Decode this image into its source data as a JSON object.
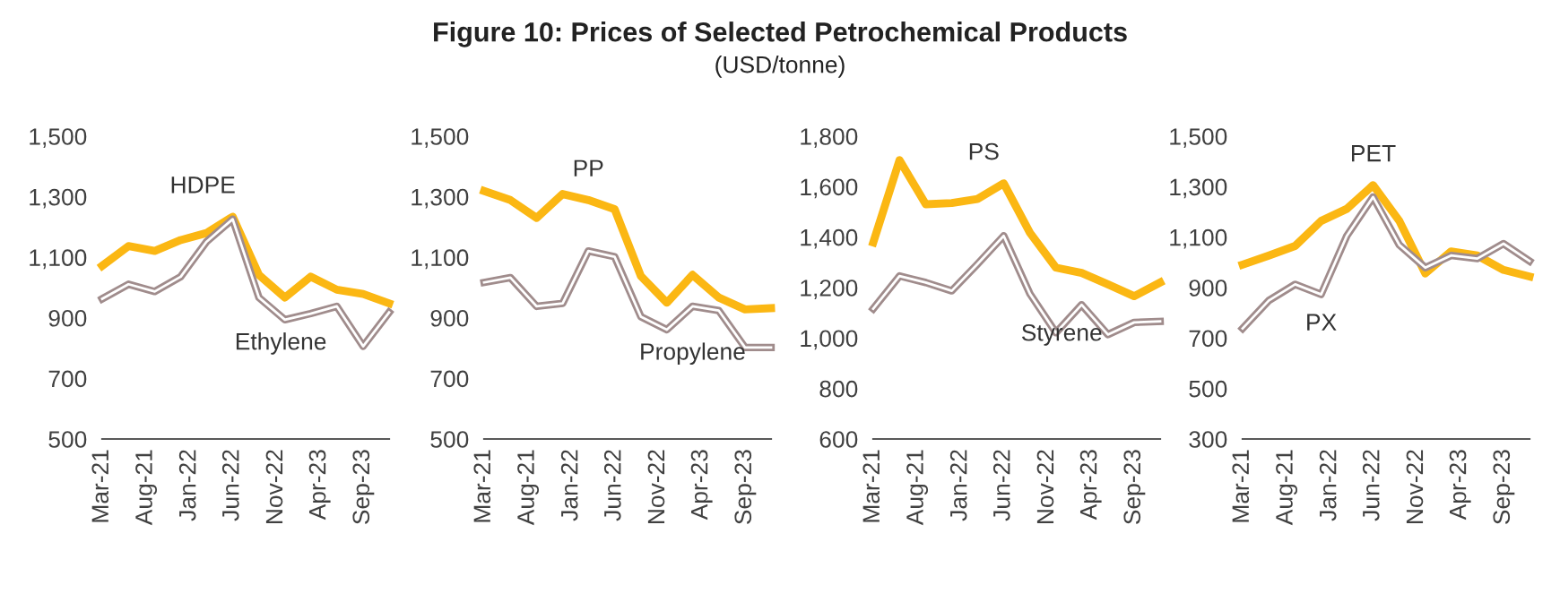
{
  "chart_data": [
    {
      "type": "other",
      "title": "Figure 10: Prices of Selected Petrochemical Products",
      "subtitle": "(USD/tonne)"
    },
    {
      "type": "line",
      "x": [
        "2021-03",
        "2021-06",
        "2021-09",
        "2021-12",
        "2022-03",
        "2022-06",
        "2022-09",
        "2022-12",
        "2023-03",
        "2023-06",
        "2023-09",
        "2023-12"
      ],
      "series": [
        {
          "name": "HDPE",
          "color": "#fbb713",
          "values": [
            1072,
            1137,
            1121,
            1157,
            1180,
            1234,
            1042,
            967,
            1036,
            993,
            979,
            948
          ]
        },
        {
          "name": "Ethylene",
          "color": "#a08c8c",
          "values": [
            963,
            1011,
            987,
            1036,
            1151,
            1226,
            967,
            894,
            914,
            938,
            806,
            918
          ]
        }
      ],
      "xlim": [
        "2021-03",
        "2023-12"
      ],
      "ylim": [
        500,
        1500
      ],
      "yticks": [
        {
          "value": 500,
          "label": "500"
        },
        {
          "value": 700,
          "label": "700"
        },
        {
          "value": 900,
          "label": "900"
        },
        {
          "value": 1100,
          "label": "1,100"
        },
        {
          "value": 1300,
          "label": "1,300"
        },
        {
          "value": 1500,
          "label": "1,500"
        }
      ],
      "xticks": [
        {
          "value": "2021-03",
          "label": "Mar-21"
        },
        {
          "value": "2021-08",
          "label": "Aug-21"
        },
        {
          "value": "2022-01",
          "label": "Jan-22"
        },
        {
          "value": "2022-06",
          "label": "Jun-22"
        },
        {
          "value": "2022-11",
          "label": "Nov-22"
        },
        {
          "value": "2023-04",
          "label": "Apr-23"
        },
        {
          "value": "2023-09",
          "label": "Sep-23"
        }
      ],
      "grid": false,
      "legend": false,
      "marker": "none",
      "line_style": "solid"
    },
    {
      "type": "line",
      "x": [
        "2021-03",
        "2021-06",
        "2021-09",
        "2021-12",
        "2022-03",
        "2022-06",
        "2022-09",
        "2022-12",
        "2023-03",
        "2023-06",
        "2023-09",
        "2023-12"
      ],
      "series": [
        {
          "name": "PP",
          "color": "#fbb713",
          "values": [
            1319,
            1289,
            1230,
            1309,
            1289,
            1259,
            1038,
            950,
            1042,
            967,
            928,
            932
          ]
        },
        {
          "name": "Propylene",
          "color": "#a08c8c",
          "values": [
            1017,
            1033,
            938,
            948,
            1121,
            1102,
            904,
            861,
            938,
            924,
            802,
            802
          ]
        }
      ],
      "xlim": [
        "2021-03",
        "2023-12"
      ],
      "ylim": [
        500,
        1500
      ],
      "yticks": [
        {
          "value": 500,
          "label": "500"
        },
        {
          "value": 700,
          "label": "700"
        },
        {
          "value": 900,
          "label": "900"
        },
        {
          "value": 1100,
          "label": "1,100"
        },
        {
          "value": 1300,
          "label": "1,300"
        },
        {
          "value": 1500,
          "label": "1,500"
        }
      ],
      "xticks": [
        {
          "value": "2021-03",
          "label": "Mar-21"
        },
        {
          "value": "2021-08",
          "label": "Aug-21"
        },
        {
          "value": "2022-01",
          "label": "Jan-22"
        },
        {
          "value": "2022-06",
          "label": "Jun-22"
        },
        {
          "value": "2022-11",
          "label": "Nov-22"
        },
        {
          "value": "2023-04",
          "label": "Apr-23"
        },
        {
          "value": "2023-09",
          "label": "Sep-23"
        }
      ],
      "grid": false,
      "legend": false,
      "marker": "none",
      "line_style": "solid"
    },
    {
      "type": "line",
      "x": [
        "2021-03",
        "2021-06",
        "2021-09",
        "2021-12",
        "2022-03",
        "2022-06",
        "2022-09",
        "2022-12",
        "2023-03",
        "2023-06",
        "2023-09",
        "2023-12"
      ],
      "series": [
        {
          "name": "PS",
          "color": "#fbb713",
          "values": [
            1379,
            1705,
            1530,
            1535,
            1551,
            1613,
            1417,
            1279,
            1258,
            1213,
            1166,
            1220
          ]
        },
        {
          "name": "Styrene",
          "color": "#a08c8c",
          "values": [
            1116,
            1246,
            1220,
            1187,
            1293,
            1405,
            1175,
            1021,
            1132,
            1014,
            1062,
            1066
          ]
        }
      ],
      "xlim": [
        "2021-03",
        "2023-12"
      ],
      "ylim": [
        600,
        1800
      ],
      "yticks": [
        {
          "value": 600,
          "label": "600"
        },
        {
          "value": 800,
          "label": "800"
        },
        {
          "value": 1000,
          "label": "1,000"
        },
        {
          "value": 1200,
          "label": "1,200"
        },
        {
          "value": 1400,
          "label": "1,400"
        },
        {
          "value": 1600,
          "label": "1,600"
        },
        {
          "value": 1800,
          "label": "1,800"
        }
      ],
      "xticks": [
        {
          "value": "2021-03",
          "label": "Mar-21"
        },
        {
          "value": "2021-08",
          "label": "Aug-21"
        },
        {
          "value": "2022-01",
          "label": "Jan-22"
        },
        {
          "value": "2022-06",
          "label": "Jun-22"
        },
        {
          "value": "2022-11",
          "label": "Nov-22"
        },
        {
          "value": "2023-04",
          "label": "Apr-23"
        },
        {
          "value": "2023-09",
          "label": "Sep-23"
        }
      ],
      "grid": false,
      "legend": false,
      "marker": "none",
      "line_style": "solid"
    },
    {
      "type": "line",
      "x": [
        "2021-03",
        "2021-06",
        "2021-09",
        "2021-12",
        "2022-03",
        "2022-06",
        "2022-09",
        "2022-12",
        "2023-03",
        "2023-06",
        "2023-09",
        "2023-12"
      ],
      "series": [
        {
          "name": "PET",
          "color": "#fbb713",
          "values": [
            991,
            1027,
            1065,
            1164,
            1212,
            1306,
            1164,
            956,
            1043,
            1027,
            970,
            944
          ]
        },
        {
          "name": "PX",
          "color": "#a08c8c",
          "values": [
            738,
            849,
            913,
            873,
            1105,
            1259,
            1069,
            979,
            1027,
            1015,
            1074,
            1005
          ]
        }
      ],
      "xlim": [
        "2021-03",
        "2023-12"
      ],
      "ylim": [
        300,
        1500
      ],
      "yticks": [
        {
          "value": 300,
          "label": "300"
        },
        {
          "value": 500,
          "label": "500"
        },
        {
          "value": 700,
          "label": "700"
        },
        {
          "value": 900,
          "label": "900"
        },
        {
          "value": 1100,
          "label": "1,100"
        },
        {
          "value": 1300,
          "label": "1,300"
        },
        {
          "value": 1500,
          "label": "1,500"
        }
      ],
      "xticks": [
        {
          "value": "2021-03",
          "label": "Mar-21"
        },
        {
          "value": "2021-08",
          "label": "Aug-21"
        },
        {
          "value": "2022-01",
          "label": "Jan-22"
        },
        {
          "value": "2022-06",
          "label": "Jun-22"
        },
        {
          "value": "2022-11",
          "label": "Nov-22"
        },
        {
          "value": "2023-04",
          "label": "Apr-23"
        },
        {
          "value": "2023-09",
          "label": "Sep-23"
        }
      ],
      "grid": false,
      "legend": false,
      "marker": "none",
      "line_style": "solid"
    }
  ]
}
